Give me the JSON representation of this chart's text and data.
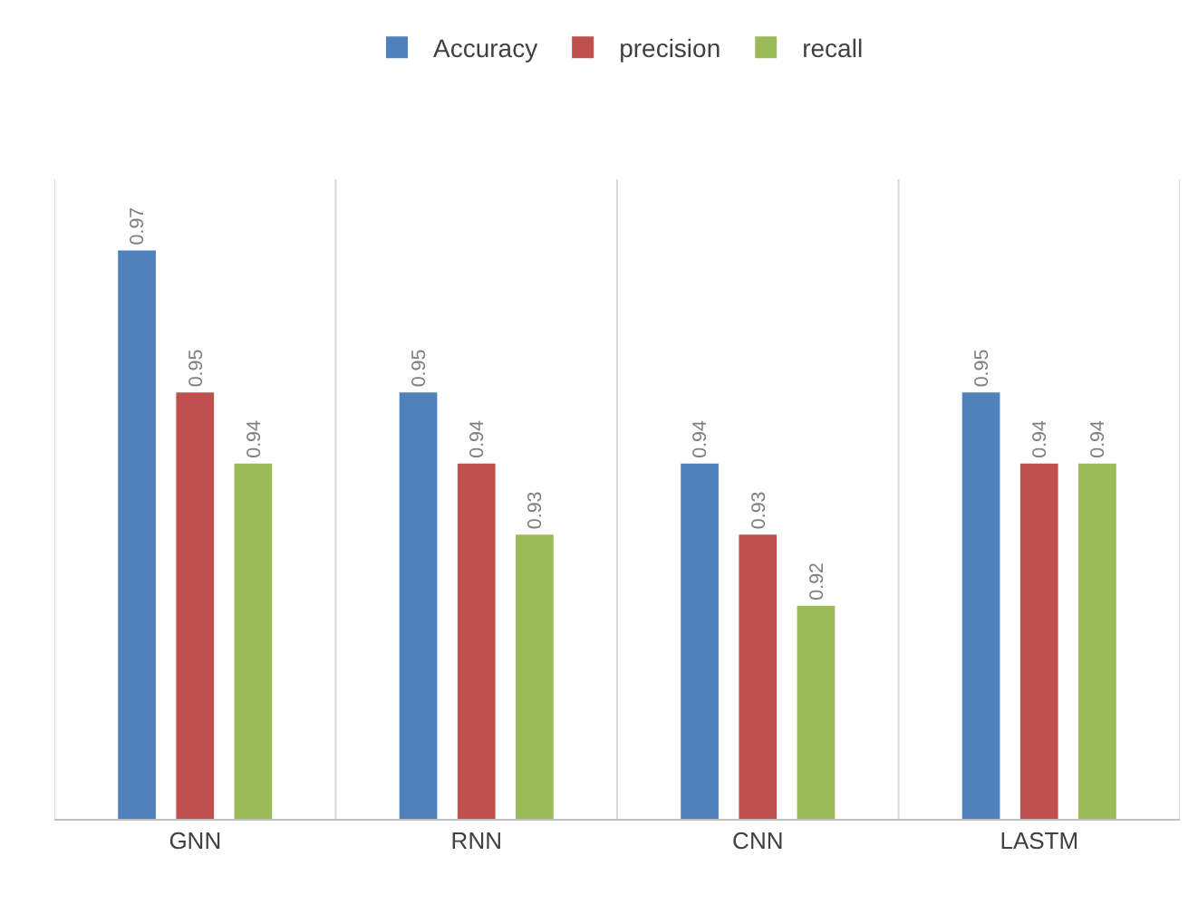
{
  "chart_data": {
    "type": "bar",
    "categories": [
      "GNN",
      "RNN",
      "CNN",
      "LASTM"
    ],
    "series": [
      {
        "name": "Accuracy",
        "color": "#4f81bd",
        "values": [
          0.97,
          0.95,
          0.94,
          0.95
        ]
      },
      {
        "name": "precision",
        "color": "#c0504d",
        "values": [
          0.95,
          0.94,
          0.93,
          0.94
        ]
      },
      {
        "name": "recall",
        "color": "#9bbb59",
        "values": [
          0.94,
          0.93,
          0.92,
          0.94
        ]
      }
    ],
    "ylim": [
      0.89,
      0.98
    ],
    "data_labels": true,
    "grid": "x",
    "legend": "top",
    "tick_labels": "x"
  }
}
